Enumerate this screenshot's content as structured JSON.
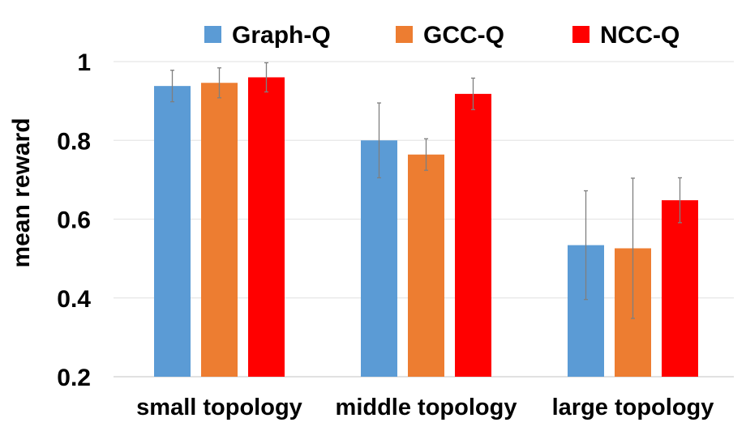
{
  "chart_data": {
    "type": "bar",
    "title": "",
    "xlabel": "",
    "ylabel": "mean reward",
    "ylim": [
      0.2,
      1.0
    ],
    "yticks": [
      "0.2",
      "0.4",
      "0.6",
      "0.8",
      "1"
    ],
    "ytick_values": [
      0.2,
      0.4,
      0.6,
      0.8,
      1.0
    ],
    "grid": true,
    "legend_position": "top",
    "categories": [
      "small topology",
      "middle topology",
      "large topology"
    ],
    "series": [
      {
        "name": "Graph-Q",
        "color": "#5B9BD5",
        "values": [
          0.938,
          0.8,
          0.534
        ],
        "errors": [
          0.04,
          0.095,
          0.138
        ]
      },
      {
        "name": "GCC-Q",
        "color": "#ED7D31",
        "values": [
          0.946,
          0.764,
          0.526
        ],
        "errors": [
          0.038,
          0.04,
          0.178
        ]
      },
      {
        "name": "NCC-Q",
        "color": "#FF0000",
        "values": [
          0.96,
          0.918,
          0.648
        ],
        "errors": [
          0.037,
          0.04,
          0.057
        ]
      }
    ]
  }
}
